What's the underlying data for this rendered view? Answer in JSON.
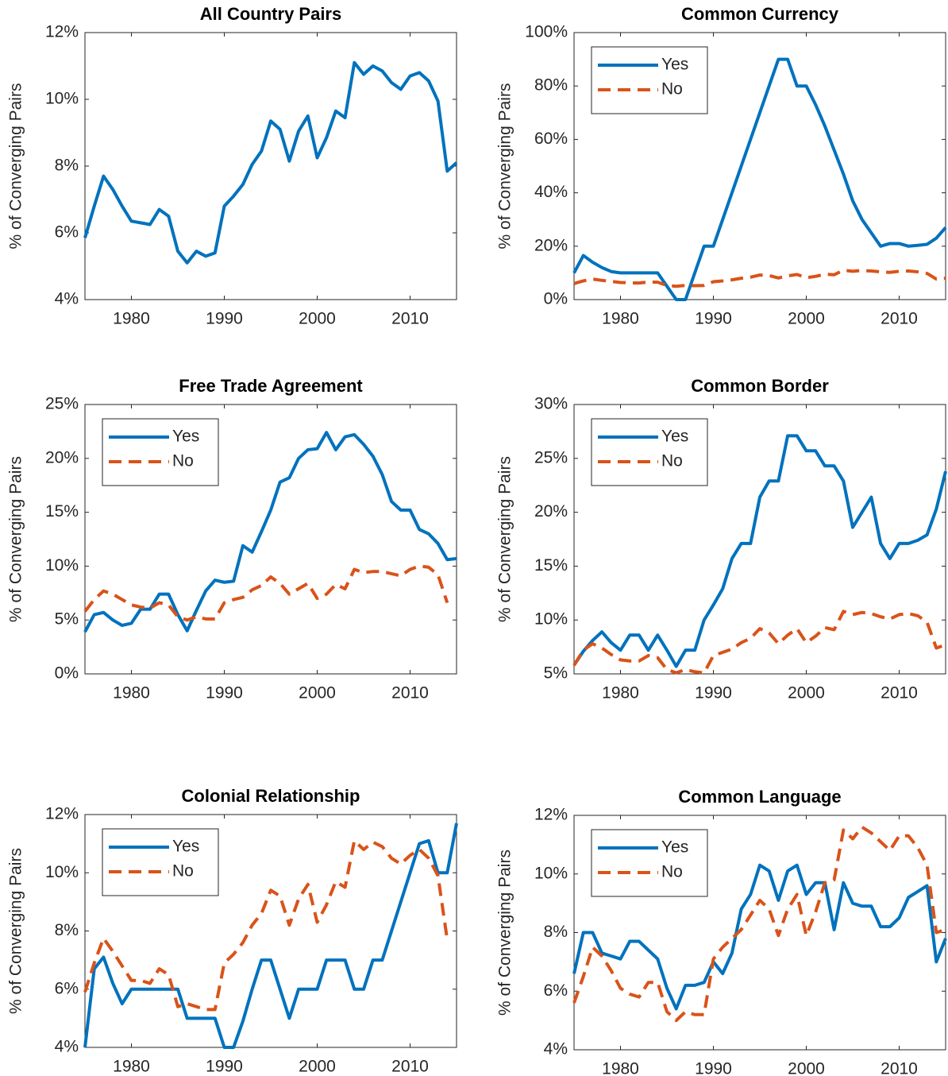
{
  "chart_data": [
    {
      "type": "line",
      "title": "All Country Pairs",
      "y_label": "% of Converging Pairs",
      "x": [
        1975,
        1976,
        1977,
        1978,
        1979,
        1980,
        1981,
        1982,
        1983,
        1984,
        1985,
        1986,
        1987,
        1988,
        1989,
        1990,
        1991,
        1992,
        1993,
        1994,
        1995,
        1996,
        1997,
        1998,
        1999,
        2000,
        2001,
        2002,
        2003,
        2004,
        2005,
        2006,
        2007,
        2008,
        2009,
        2010,
        2011,
        2012,
        2013,
        2014,
        2015
      ],
      "xlim": [
        1975,
        2015
      ],
      "xticks": [
        1980,
        1990,
        2000,
        2010
      ],
      "ylim": [
        4,
        12
      ],
      "yticks": [
        {
          "value": 4,
          "label": "4%"
        },
        {
          "value": 6,
          "label": "6%"
        },
        {
          "value": 8,
          "label": "8%"
        },
        {
          "value": 10,
          "label": "10%"
        },
        {
          "value": 12,
          "label": "12%"
        }
      ],
      "series": [
        {
          "color": "#0072bd",
          "line_style": "solid",
          "values": [
            5.85,
            6.8,
            7.7,
            7.3,
            6.8,
            6.35,
            6.3,
            6.25,
            6.7,
            6.5,
            5.45,
            5.1,
            5.45,
            5.3,
            5.4,
            6.8,
            7.1,
            7.45,
            8.05,
            8.45,
            9.35,
            9.1,
            8.15,
            9.05,
            9.5,
            8.25,
            8.85,
            9.65,
            9.45,
            11.1,
            10.75,
            11.0,
            10.85,
            10.5,
            10.3,
            10.7,
            10.8,
            10.55,
            9.95,
            7.85,
            8.1
          ]
        }
      ]
    },
    {
      "type": "line",
      "title": "Common Currency",
      "y_label": "% of Converging Pairs",
      "legend": "northwest",
      "x": [
        1975,
        1976,
        1977,
        1978,
        1979,
        1980,
        1981,
        1982,
        1983,
        1984,
        1985,
        1986,
        1987,
        1988,
        1989,
        1990,
        1991,
        1992,
        1993,
        1994,
        1995,
        1996,
        1997,
        1998,
        1999,
        2000,
        2001,
        2002,
        2003,
        2004,
        2005,
        2006,
        2007,
        2008,
        2009,
        2010,
        2011,
        2012,
        2013,
        2014,
        2015
      ],
      "xlim": [
        1975,
        2015
      ],
      "xticks": [
        1980,
        1990,
        2000,
        2010
      ],
      "ylim": [
        0,
        100
      ],
      "yticks": [
        {
          "value": 0,
          "label": "0%"
        },
        {
          "value": 20,
          "label": "20%"
        },
        {
          "value": 40,
          "label": "40%"
        },
        {
          "value": 60,
          "label": "60%"
        },
        {
          "value": 80,
          "label": "80%"
        },
        {
          "value": 100,
          "label": "100%"
        }
      ],
      "series": [
        {
          "name": "Yes",
          "color": "#0072bd",
          "line_style": "solid",
          "values": [
            10,
            16.5,
            14,
            12,
            10.5,
            10,
            10,
            10,
            10,
            10,
            5,
            0,
            0,
            10,
            20,
            20,
            30,
            40,
            50,
            60,
            70,
            80,
            90,
            90,
            80,
            80,
            73,
            65,
            56,
            47,
            37,
            30,
            25,
            20,
            21,
            21,
            20,
            20.3,
            20.7,
            23,
            27
          ]
        },
        {
          "name": "No",
          "color": "#d95319",
          "line_style": "dashed",
          "values": [
            6,
            7,
            7.7,
            7.2,
            6.8,
            6.4,
            6.3,
            6.2,
            6.6,
            6.5,
            5.3,
            5,
            5.3,
            5.2,
            5.3,
            6.7,
            7,
            7.4,
            8,
            8.4,
            9.2,
            9,
            8.1,
            8.9,
            9.4,
            8.2,
            8.7,
            9.5,
            9.3,
            11,
            10.6,
            10.9,
            10.7,
            10.4,
            10.2,
            10.6,
            10.7,
            10.4,
            9.8,
            7.7,
            8
          ]
        }
      ]
    },
    {
      "type": "line",
      "title": "Free Trade Agreement",
      "y_label": "% of Converging Pairs",
      "legend": "northwest",
      "x": [
        1975,
        1976,
        1977,
        1978,
        1979,
        1980,
        1981,
        1982,
        1983,
        1984,
        1985,
        1986,
        1987,
        1988,
        1989,
        1990,
        1991,
        1992,
        1993,
        1994,
        1995,
        1996,
        1997,
        1998,
        1999,
        2000,
        2001,
        2002,
        2003,
        2004,
        2005,
        2006,
        2007,
        2008,
        2009,
        2010,
        2011,
        2012,
        2013,
        2014,
        2015
      ],
      "xlim": [
        1975,
        2015
      ],
      "xticks": [
        1980,
        1990,
        2000,
        2010
      ],
      "ylim": [
        0,
        25
      ],
      "yticks": [
        {
          "value": 0,
          "label": "0%"
        },
        {
          "value": 5,
          "label": "5%"
        },
        {
          "value": 10,
          "label": "10%"
        },
        {
          "value": 15,
          "label": "15%"
        },
        {
          "value": 20,
          "label": "20%"
        },
        {
          "value": 25,
          "label": "25%"
        }
      ],
      "series": [
        {
          "name": "Yes",
          "color": "#0072bd",
          "line_style": "solid",
          "values": [
            3.9,
            5.5,
            5.7,
            5,
            4.5,
            4.7,
            6,
            6,
            7.4,
            7.4,
            5.5,
            4,
            5.9,
            7.7,
            8.7,
            8.5,
            8.6,
            11.9,
            11.3,
            13.2,
            15.2,
            17.8,
            18.2,
            20,
            20.8,
            20.9,
            22.4,
            20.8,
            22,
            22.2,
            21.3,
            20.2,
            18.5,
            16,
            15.2,
            15.2,
            13.4,
            13,
            12.1,
            10.6,
            10.7
          ]
        },
        {
          "name": "No",
          "color": "#d95319",
          "line_style": "dashed",
          "values": [
            5.8,
            6.9,
            7.7,
            7.4,
            6.9,
            6.4,
            6.2,
            6.1,
            6.6,
            6.4,
            5.3,
            5,
            5.3,
            5.1,
            5.1,
            6.6,
            6.9,
            7.1,
            7.8,
            8.2,
            9,
            8.4,
            7.4,
            7.9,
            8.4,
            7,
            7.4,
            8.3,
            7.9,
            9.7,
            9.4,
            9.5,
            9.5,
            9.3,
            9.1,
            9.7,
            10,
            9.9,
            9.2,
            6.6,
            null
          ]
        }
      ]
    },
    {
      "type": "line",
      "title": "Common Border",
      "y_label": "% of Converging Pairs",
      "legend": "northwest",
      "x": [
        1975,
        1976,
        1977,
        1978,
        1979,
        1980,
        1981,
        1982,
        1983,
        1984,
        1985,
        1986,
        1987,
        1988,
        1989,
        1990,
        1991,
        1992,
        1993,
        1994,
        1995,
        1996,
        1997,
        1998,
        1999,
        2000,
        2001,
        2002,
        2003,
        2004,
        2005,
        2006,
        2007,
        2008,
        2009,
        2010,
        2011,
        2012,
        2013,
        2014,
        2015
      ],
      "xlim": [
        1975,
        2015
      ],
      "xticks": [
        1980,
        1990,
        2000,
        2010
      ],
      "ylim": [
        5,
        30
      ],
      "yticks": [
        {
          "value": 5,
          "label": "5%"
        },
        {
          "value": 10,
          "label": "10%"
        },
        {
          "value": 15,
          "label": "15%"
        },
        {
          "value": 20,
          "label": "20%"
        },
        {
          "value": 25,
          "label": "25%"
        },
        {
          "value": 30,
          "label": "30%"
        }
      ],
      "series": [
        {
          "name": "Yes",
          "color": "#0072bd",
          "line_style": "solid",
          "values": [
            5.8,
            7.1,
            8.1,
            8.9,
            7.9,
            7.2,
            8.6,
            8.6,
            7.2,
            8.6,
            7.2,
            5.7,
            7.2,
            7.2,
            10,
            11.4,
            12.9,
            15.7,
            17.1,
            17.1,
            21.4,
            22.9,
            22.9,
            27.1,
            27.1,
            25.7,
            25.7,
            24.3,
            24.3,
            22.9,
            18.6,
            20,
            21.4,
            17.1,
            15.7,
            17.1,
            17.1,
            17.4,
            17.9,
            20.3,
            23.8
          ]
        },
        {
          "name": "No",
          "color": "#d95319",
          "line_style": "dashed",
          "values": [
            5.8,
            7.2,
            7.8,
            7.4,
            6.8,
            6.3,
            6.2,
            6.2,
            6.7,
            6.5,
            5.4,
            5.1,
            5.4,
            5.2,
            5.1,
            6.7,
            7,
            7.3,
            7.9,
            8.3,
            9.2,
            8.8,
            7.8,
            8.6,
            9.2,
            7.9,
            8.5,
            9.3,
            9.1,
            10.8,
            10.5,
            10.7,
            10.6,
            10.3,
            10.1,
            10.5,
            10.6,
            10.4,
            9.8,
            7.4,
            7.7
          ]
        }
      ]
    },
    {
      "type": "line",
      "title": "Colonial Relationship",
      "y_label": "% of Converging Pairs",
      "legend": "northwest",
      "x": [
        1975,
        1976,
        1977,
        1978,
        1979,
        1980,
        1981,
        1982,
        1983,
        1984,
        1985,
        1986,
        1987,
        1988,
        1989,
        1990,
        1991,
        1992,
        1993,
        1994,
        1995,
        1996,
        1997,
        1998,
        1999,
        2000,
        2001,
        2002,
        2003,
        2004,
        2005,
        2006,
        2007,
        2008,
        2009,
        2010,
        2011,
        2012,
        2013,
        2014,
        2015
      ],
      "xlim": [
        1975,
        2015
      ],
      "xticks": [
        1980,
        1990,
        2000,
        2010
      ],
      "ylim": [
        4,
        12
      ],
      "yticks": [
        {
          "value": 4,
          "label": "4%"
        },
        {
          "value": 6,
          "label": "6%"
        },
        {
          "value": 8,
          "label": "8%"
        },
        {
          "value": 10,
          "label": "10%"
        },
        {
          "value": 12,
          "label": "12%"
        }
      ],
      "series": [
        {
          "name": "Yes",
          "color": "#0072bd",
          "line_style": "solid",
          "values": [
            4,
            6.7,
            7.1,
            6.2,
            5.5,
            6,
            6,
            6,
            6,
            6,
            6,
            5,
            5,
            5,
            5,
            4,
            4,
            4.9,
            6,
            7,
            7,
            6,
            5,
            6,
            6,
            6,
            7,
            7,
            7,
            6,
            6,
            7,
            7,
            8,
            9,
            10,
            11,
            11.1,
            10,
            10,
            11.7
          ]
        },
        {
          "name": "No",
          "color": "#d95319",
          "line_style": "dashed",
          "values": [
            5.9,
            6.9,
            7.75,
            7.3,
            6.8,
            6.3,
            6.3,
            6.2,
            6.7,
            6.5,
            5.4,
            5.5,
            5.4,
            5.3,
            5.3,
            6.9,
            7.2,
            7.6,
            8.2,
            8.6,
            9.4,
            9.2,
            8.2,
            9.1,
            9.6,
            8.3,
            8.9,
            9.7,
            9.5,
            11.1,
            10.8,
            11.05,
            10.9,
            10.5,
            10.3,
            10.6,
            10.8,
            10.5,
            9.9,
            7.7,
            null
          ]
        }
      ]
    },
    {
      "type": "line",
      "title": "Common Language",
      "y_label": "% of Converging Pairs",
      "legend": "northwest",
      "x": [
        1975,
        1976,
        1977,
        1978,
        1979,
        1980,
        1981,
        1982,
        1983,
        1984,
        1985,
        1986,
        1987,
        1988,
        1989,
        1990,
        1991,
        1992,
        1993,
        1994,
        1995,
        1996,
        1997,
        1998,
        1999,
        2000,
        2001,
        2002,
        2003,
        2004,
        2005,
        2006,
        2007,
        2008,
        2009,
        2010,
        2011,
        2012,
        2013,
        2014,
        2015
      ],
      "xlim": [
        1975,
        2015
      ],
      "xticks": [
        1980,
        1990,
        2000,
        2010
      ],
      "ylim": [
        4,
        12
      ],
      "yticks": [
        {
          "value": 4,
          "label": "4%"
        },
        {
          "value": 6,
          "label": "6%"
        },
        {
          "value": 8,
          "label": "8%"
        },
        {
          "value": 10,
          "label": "10%"
        },
        {
          "value": 12,
          "label": "12%"
        }
      ],
      "series": [
        {
          "name": "Yes",
          "color": "#0072bd",
          "line_style": "solid",
          "values": [
            6.6,
            8,
            8,
            7.3,
            7.2,
            7.1,
            7.7,
            7.7,
            7.4,
            7.1,
            6.1,
            5.4,
            6.2,
            6.2,
            6.3,
            7,
            6.6,
            7.3,
            8.8,
            9.3,
            10.3,
            10.1,
            9.1,
            10.1,
            10.3,
            9.3,
            9.7,
            9.7,
            8.1,
            9.7,
            9,
            8.9,
            8.9,
            8.2,
            8.2,
            8.5,
            9.2,
            9.4,
            9.6,
            7,
            7.8
          ]
        },
        {
          "name": "No",
          "color": "#d95319",
          "line_style": "dashed",
          "values": [
            5.6,
            6.5,
            7.5,
            7.2,
            6.7,
            6.1,
            5.9,
            5.8,
            6.3,
            6.3,
            5.3,
            5,
            5.3,
            5.2,
            5.2,
            7.1,
            7.5,
            7.8,
            8.1,
            8.6,
            9.1,
            8.8,
            7.9,
            8.8,
            9.3,
            7.9,
            8.7,
            9.7,
            9.8,
            11.5,
            11.2,
            11.6,
            11.4,
            11.1,
            10.8,
            11.3,
            11.3,
            10.9,
            10.3,
            8,
            8.1
          ]
        }
      ]
    }
  ]
}
